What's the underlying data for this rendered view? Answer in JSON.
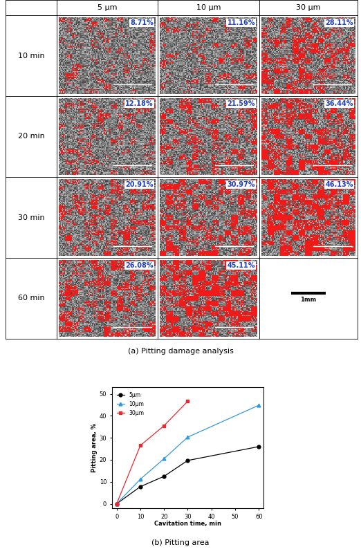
{
  "table": {
    "columns": [
      "5 μm",
      "10 μm",
      "30 μm"
    ],
    "rows": [
      {
        "label": "10 min",
        "cells": [
          {
            "value": 8.71,
            "label": "8.71%"
          },
          {
            "value": 11.16,
            "label": "11.16%"
          },
          {
            "value": 28.11,
            "label": "28.11%"
          }
        ]
      },
      {
        "label": "20 min",
        "cells": [
          {
            "value": 12.18,
            "label": "12.18%"
          },
          {
            "value": 21.59,
            "label": "21.59%"
          },
          {
            "value": 36.44,
            "label": "36.44%"
          }
        ]
      },
      {
        "label": "30 min",
        "cells": [
          {
            "value": 20.91,
            "label": "20.91%"
          },
          {
            "value": 30.97,
            "label": "30.97%"
          },
          {
            "value": 46.13,
            "label": "46.13%"
          }
        ]
      },
      {
        "label": "60 min",
        "cells": [
          {
            "value": 26.08,
            "label": "26.08%"
          },
          {
            "value": 45.11,
            "label": "45.11%"
          },
          null
        ]
      }
    ],
    "scale_bar": "1mm",
    "caption": "(a) Pitting damage analysis"
  },
  "chart_data": {
    "type": "line",
    "caption": "(b) Pitting area",
    "x": [
      0,
      10,
      20,
      30,
      60
    ],
    "x_label": "Cavitation time, min",
    "y_label": "Pitting area, %",
    "series": [
      {
        "name": "5μm",
        "color": "#000000",
        "marker": "o",
        "values": [
          0,
          7.8,
          12.5,
          19.7,
          26.0
        ]
      },
      {
        "name": "10μm",
        "color": "#3399dd",
        "marker": "^",
        "values": [
          0,
          11.2,
          20.5,
          30.3,
          44.8
        ]
      },
      {
        "name": "30μm",
        "color": "#e8292e",
        "marker": "s",
        "values": [
          0,
          26.5,
          35.5,
          46.6,
          null
        ]
      }
    ],
    "xlim": [
      -2,
      62
    ],
    "xticks": [
      0,
      10,
      20,
      30,
      40,
      50,
      60
    ],
    "ylim": [
      -2,
      53
    ],
    "yticks": [
      0,
      10,
      20,
      30,
      40,
      50
    ],
    "legend": "upper left",
    "grid": false
  }
}
